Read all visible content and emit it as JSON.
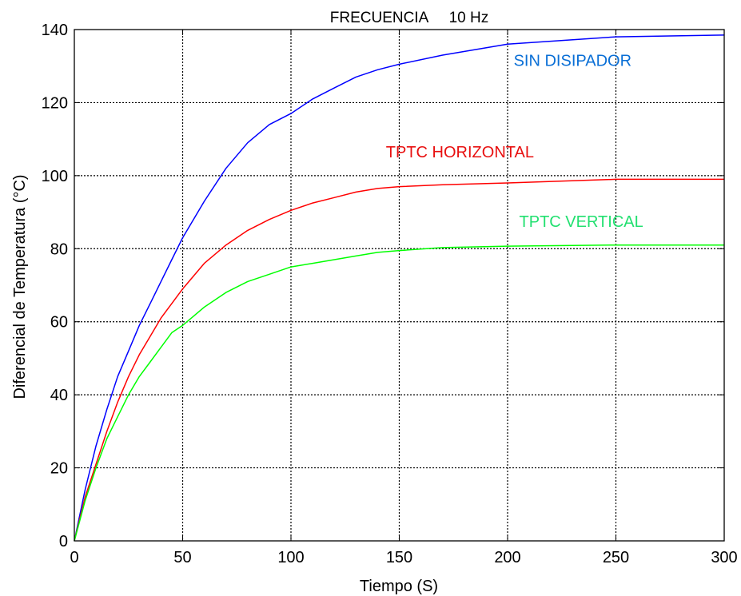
{
  "chart_data": {
    "type": "line",
    "title": "FRECUENCIA     10 Hz",
    "xlabel": "Tiempo (S)",
    "ylabel": "Diferencial de Temperatura (°C)",
    "xlim": [
      0,
      300
    ],
    "ylim": [
      0,
      140
    ],
    "xticks": [
      0,
      50,
      100,
      150,
      200,
      250,
      300
    ],
    "yticks": [
      0,
      20,
      40,
      60,
      80,
      100,
      120,
      140
    ],
    "grid": true,
    "series": [
      {
        "name": "SIN DISIPADOR",
        "color": "#0000ff",
        "label_color": "#0a6fd6",
        "label_at": [
          230,
          130
        ],
        "x": [
          0,
          5,
          10,
          15,
          20,
          25,
          30,
          35,
          40,
          45,
          50,
          60,
          70,
          80,
          90,
          100,
          110,
          120,
          130,
          140,
          150,
          170,
          200,
          250,
          300
        ],
        "y": [
          0,
          14,
          26,
          36,
          45,
          52,
          59,
          65,
          71,
          77,
          83,
          93,
          102,
          109,
          114,
          117,
          121,
          124,
          127,
          129,
          130.5,
          133,
          136,
          138,
          138.5
        ]
      },
      {
        "name": "TPTC HORIZONTAL",
        "color": "#ff0000",
        "label_color": "#e81010",
        "label_at": [
          178,
          105
        ],
        "x": [
          0,
          5,
          10,
          15,
          20,
          25,
          30,
          35,
          40,
          45,
          50,
          60,
          70,
          80,
          90,
          100,
          110,
          120,
          130,
          140,
          150,
          170,
          200,
          250,
          300
        ],
        "y": [
          0,
          12,
          21,
          30,
          38,
          45,
          51,
          56,
          61,
          65,
          69,
          76,
          81,
          85,
          88,
          90.5,
          92.5,
          94,
          95.5,
          96.5,
          97,
          97.5,
          98,
          99,
          99
        ]
      },
      {
        "name": "TPTC VERTICAL",
        "color": "#00ff00",
        "label_color": "#22e070",
        "label_at": [
          234,
          86
        ],
        "x": [
          0,
          5,
          10,
          15,
          20,
          25,
          30,
          35,
          40,
          45,
          50,
          60,
          70,
          80,
          90,
          100,
          110,
          120,
          130,
          140,
          150,
          170,
          200,
          250,
          300
        ],
        "y": [
          0,
          11,
          20,
          28,
          34,
          40,
          45,
          49,
          53,
          57,
          59,
          64,
          68,
          71,
          73,
          75,
          76,
          77,
          78,
          79,
          79.5,
          80.3,
          80.7,
          81,
          81
        ]
      }
    ]
  }
}
